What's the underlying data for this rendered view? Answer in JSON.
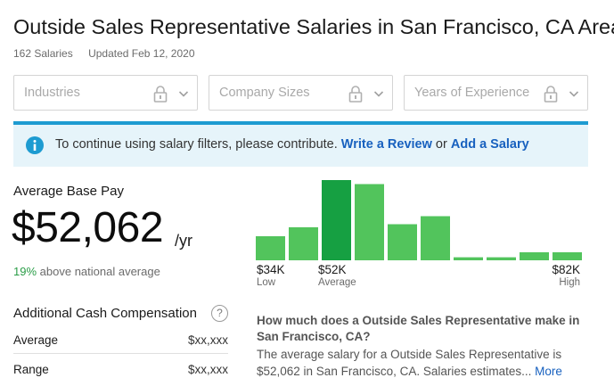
{
  "header": {
    "title": "Outside Sales Representative Salaries in San Francisco, CA Area",
    "salary_count": "162 Salaries",
    "updated": "Updated Feb 12, 2020"
  },
  "filters": [
    {
      "placeholder": "Industries",
      "icon": "lock-icon"
    },
    {
      "placeholder": "Company Sizes",
      "icon": "lock-icon"
    },
    {
      "placeholder": "Years of Experience",
      "icon": "lock-icon"
    }
  ],
  "banner": {
    "message": "To continue using salary filters, please contribute.",
    "link1": "Write a Review",
    "conjunction": "or",
    "link2": "Add a Salary",
    "accent": "#1d9bd1",
    "background": "#e6f4fa"
  },
  "pay": {
    "label": "Average Base Pay",
    "value": "$52,062",
    "unit": "/yr",
    "compare_pct": "19%",
    "compare_text": "above national average"
  },
  "chart_data": {
    "type": "bar",
    "values": [
      24,
      33,
      80,
      76,
      36,
      44,
      3,
      3,
      8,
      8
    ],
    "highlight_index": 2,
    "colors": {
      "bar": "#52c45c",
      "highlight": "#16a042"
    },
    "low": {
      "value": "$34K",
      "label": "Low"
    },
    "average": {
      "value": "$52K",
      "label": "Average"
    },
    "high": {
      "value": "$82K",
      "label": "High"
    }
  },
  "additional_cash": {
    "title": "Additional Cash Compensation",
    "help": "?",
    "rows": [
      {
        "label": "Average",
        "value": "$xx,xxx"
      },
      {
        "label": "Range",
        "value": "$xx,xxx"
      }
    ]
  },
  "faq": {
    "question": "How much does a Outside Sales Representative make in San Francisco, CA?",
    "answer": "The average salary for a Outside Sales Representative is $52,062 in San Francisco, CA. Salaries estimates...",
    "more": "More"
  }
}
